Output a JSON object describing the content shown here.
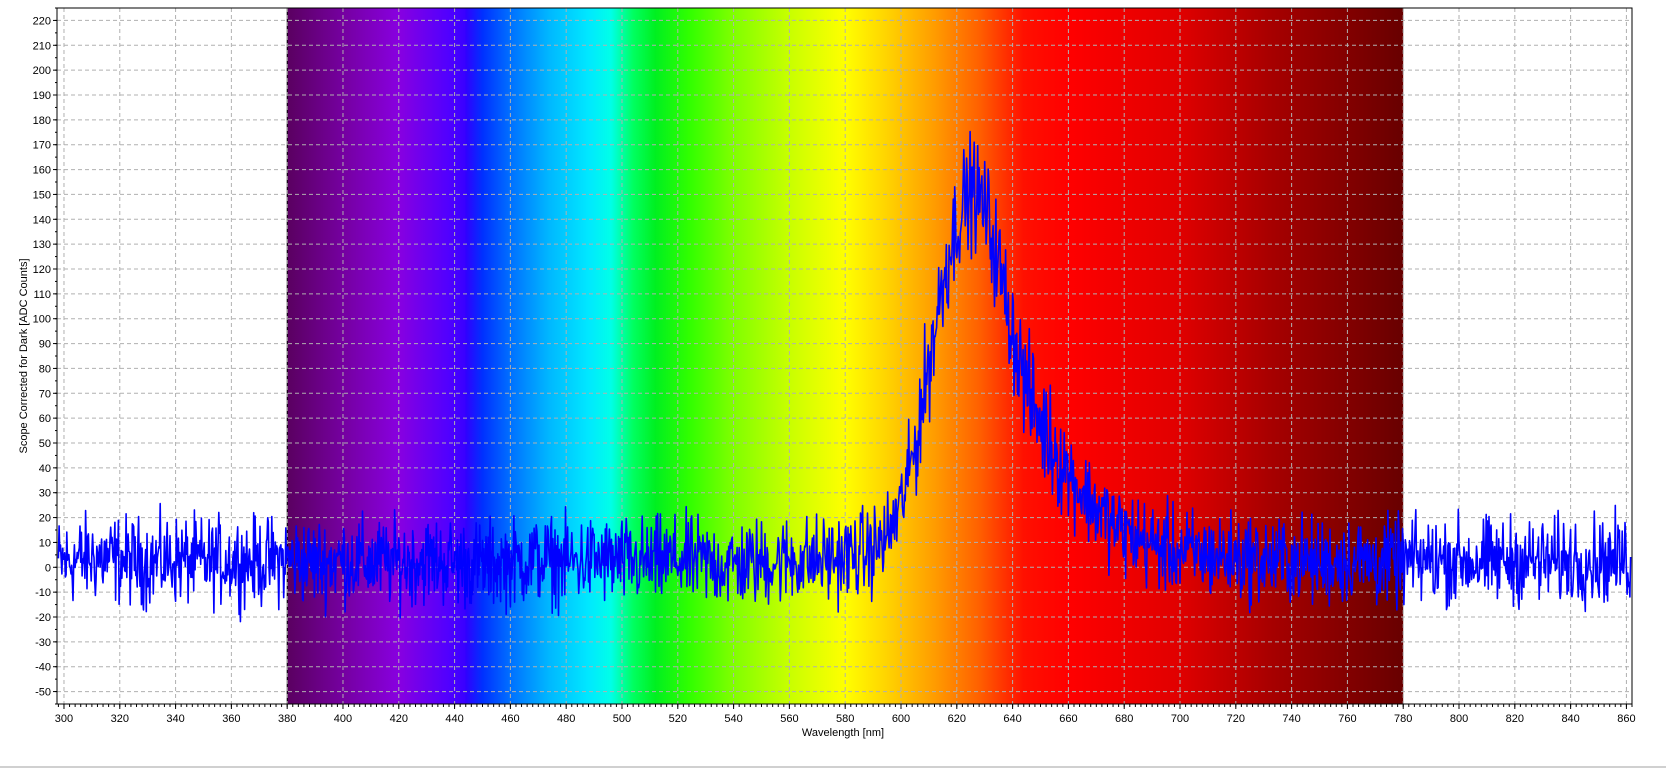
{
  "chart_data": {
    "type": "line",
    "title": "",
    "xlabel": "Wavelength [nm]",
    "ylabel": "Scope Corrected for Dark [ADC Counts]",
    "xlim": [
      297.5,
      862
    ],
    "ylim": [
      -55,
      225
    ],
    "xticks": [
      300,
      320,
      340,
      360,
      380,
      400,
      420,
      440,
      460,
      480,
      500,
      520,
      540,
      560,
      580,
      600,
      620,
      640,
      660,
      680,
      700,
      720,
      740,
      760,
      780,
      800,
      820,
      840,
      860
    ],
    "yticks": [
      -50,
      -40,
      -30,
      -20,
      -10,
      0,
      10,
      20,
      30,
      40,
      50,
      60,
      70,
      80,
      90,
      100,
      110,
      120,
      130,
      140,
      150,
      160,
      170,
      180,
      190,
      200,
      210,
      220
    ],
    "grid": true,
    "legend": "none",
    "background_spectrum": {
      "from_nm": 380,
      "to_nm": 780
    },
    "series": [
      {
        "color": "#0000ff",
        "x": [
          300,
          310,
          320,
          330,
          340,
          350,
          360,
          370,
          380,
          390,
          400,
          410,
          420,
          430,
          440,
          450,
          460,
          470,
          480,
          490,
          500,
          510,
          520,
          530,
          540,
          550,
          560,
          570,
          580,
          590,
          595,
          600,
          605,
          610,
          615,
          620,
          625,
          630,
          635,
          640,
          645,
          650,
          655,
          660,
          665,
          670,
          675,
          680,
          690,
          700,
          710,
          720,
          730,
          740,
          750,
          760,
          770,
          780,
          790,
          800,
          810,
          820,
          830,
          840,
          850,
          860
        ],
        "values": [
          2,
          4,
          3,
          2,
          3,
          2,
          3,
          2,
          3,
          2,
          3,
          2,
          2,
          3,
          2,
          1,
          2,
          3,
          2,
          3,
          2,
          2,
          3,
          2,
          1,
          2,
          3,
          3,
          4,
          7,
          12,
          25,
          48,
          82,
          115,
          140,
          152,
          145,
          122,
          95,
          72,
          58,
          48,
          38,
          30,
          24,
          18,
          14,
          9,
          6,
          5,
          4,
          3,
          3,
          2,
          3,
          2,
          2,
          3,
          3,
          2,
          3,
          2,
          3,
          3,
          3
        ],
        "noise_amplitude": 15
      }
    ]
  },
  "colors": {
    "series_line": "#0000ff",
    "grid": "#b0b0b0",
    "axis": "#000000",
    "background": "#ffffff"
  }
}
